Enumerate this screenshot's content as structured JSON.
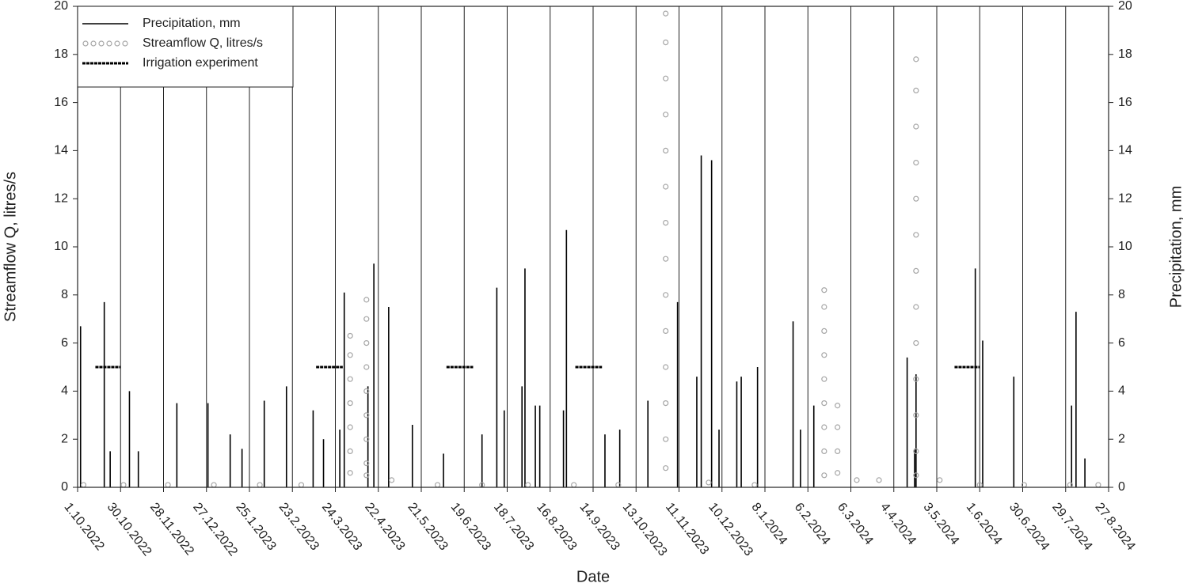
{
  "chart_data": {
    "type": "mixed",
    "xlabel": "Date",
    "ylabel": "Streamflow Q, litres/s",
    "y2label": "Precipitation, mm",
    "xlim": [
      "1.10.2022",
      "27.8.2024"
    ],
    "xticks": [
      "1.10.2022",
      "30.10.2022",
      "28.11.2022",
      "27.12.2022",
      "25.1.2023",
      "23.2.2023",
      "24.3.2023",
      "22.4.2023",
      "21.5.2023",
      "19.6.2023",
      "18.7.2023",
      "16.8.2023",
      "14.9.2023",
      "13.10.2023",
      "11.11.2023",
      "10.12.2023",
      "8.1.2024",
      "6.2.2024",
      "6.3.2024",
      "4.4.2024",
      "3.5.2024",
      "1.6.2024",
      "30.6.2024",
      "29.7.2024",
      "27.8.2024"
    ],
    "ylim": [
      0,
      20
    ],
    "yticks": [
      0,
      2,
      4,
      6,
      8,
      10,
      12,
      14,
      16,
      18,
      20
    ],
    "y2lim": [
      0,
      20
    ],
    "y2ticks": [
      0,
      2,
      4,
      6,
      8,
      10,
      12,
      14,
      16,
      18,
      20
    ],
    "grid": true,
    "legend": "upper left",
    "series": [
      {
        "name": "Precipitation, mm",
        "type": "bar",
        "axis": "y2",
        "color": "#000000",
        "x": [
          "3.10.2022",
          "19.10.2022",
          "23.10.2022",
          "5.11.2022",
          "11.11.2022",
          "7.12.2022",
          "28.12.2022",
          "12.1.2023",
          "20.1.2023",
          "4.2.2023",
          "19.2.2023",
          "9.3.2023",
          "16.3.2023",
          "27.3.2023",
          "30.3.2023",
          "15.4.2023",
          "19.4.2023",
          "29.4.2023",
          "15.5.2023",
          "5.6.2023",
          "1.7.2023",
          "11.7.2023",
          "16.7.2023",
          "28.7.2023",
          "30.7.2023",
          "6.8.2023",
          "9.8.2023",
          "25.8.2023",
          "27.8.2023",
          "22.9.2023",
          "2.10.2023",
          "21.10.2023",
          "10.11.2023",
          "23.11.2023",
          "26.11.2023",
          "3.12.2023",
          "8.12.2023",
          "20.12.2023",
          "23.12.2023",
          "3.1.2024",
          "27.1.2024",
          "1.2.2024",
          "10.2.2024",
          "13.4.2024",
          "18.4.2024",
          "19.4.2024",
          "29.5.2024",
          "3.6.2024",
          "24.6.2024",
          "2.8.2024",
          "5.8.2024",
          "11.8.2024"
        ],
        "values": [
          6.7,
          7.7,
          1.5,
          4.0,
          1.5,
          3.5,
          3.5,
          2.2,
          1.6,
          3.6,
          4.2,
          3.2,
          2.0,
          2.4,
          8.1,
          4.2,
          9.3,
          7.5,
          2.6,
          1.4,
          2.2,
          8.3,
          3.2,
          4.2,
          9.1,
          3.4,
          3.4,
          3.2,
          10.7,
          2.2,
          2.4,
          3.6,
          7.7,
          4.6,
          13.8,
          13.6,
          2.4,
          4.4,
          4.6,
          5.0,
          6.9,
          2.4,
          3.4,
          5.4,
          1.6,
          4.7,
          9.1,
          6.1,
          4.6,
          3.4,
          7.3,
          1.2
        ]
      },
      {
        "name": "Streamflow Q, litres/s",
        "type": "scatter",
        "axis": "y",
        "color": "#a6a6a6",
        "x": [
          "5.10.2022",
          "1.11.2022",
          "1.12.2022",
          "1.1.2023",
          "1.2.2023",
          "1.3.2023",
          "3.4.2023",
          "3.4.2023",
          "3.4.2023",
          "3.4.2023",
          "3.4.2023",
          "3.4.2023",
          "3.4.2023",
          "14.4.2023",
          "14.4.2023",
          "14.4.2023",
          "14.4.2023",
          "14.4.2023",
          "14.4.2023",
          "14.4.2023",
          "14.4.2023",
          "14.4.2023",
          "1.5.2023",
          "1.6.2023",
          "1.7.2023",
          "1.8.2023",
          "1.9.2023",
          "1.10.2023",
          "2.11.2023",
          "2.11.2023",
          "2.11.2023",
          "2.11.2023",
          "2.11.2023",
          "2.11.2023",
          "2.11.2023",
          "2.11.2023",
          "2.11.2023",
          "2.11.2023",
          "2.11.2023",
          "2.11.2023",
          "2.11.2023",
          "2.11.2023",
          "1.12.2023",
          "1.1.2024",
          "17.2.2024",
          "17.2.2024",
          "17.2.2024",
          "17.2.2024",
          "17.2.2024",
          "17.2.2024",
          "17.2.2024",
          "17.2.2024",
          "17.2.2024",
          "26.2.2024",
          "26.2.2024",
          "26.2.2024",
          "26.2.2024",
          "10.3.2024",
          "25.3.2024",
          "19.4.2024",
          "19.4.2024",
          "19.4.2024",
          "19.4.2024",
          "19.4.2024",
          "19.4.2024",
          "19.4.2024",
          "19.4.2024",
          "19.4.2024",
          "19.4.2024",
          "19.4.2024",
          "19.4.2024",
          "19.4.2024",
          "5.5.2024",
          "1.6.2024",
          "1.7.2024",
          "1.8.2024",
          "20.8.2024"
        ],
        "values": [
          0.1,
          0.1,
          0.1,
          0.1,
          0.1,
          0.1,
          6.3,
          5.5,
          4.5,
          3.5,
          2.5,
          1.5,
          0.6,
          7.8,
          7,
          6,
          5,
          4,
          3,
          2,
          1,
          0.5,
          0.3,
          0.1,
          0.1,
          0.1,
          0.1,
          0.1,
          19.7,
          18.5,
          17,
          15.5,
          14,
          12.5,
          11,
          9.5,
          8,
          6.5,
          5,
          3.5,
          2,
          0.8,
          0.2,
          0.1,
          8.2,
          7.5,
          6.5,
          5.5,
          4.5,
          3.5,
          2.5,
          1.5,
          0.5,
          3.4,
          2.5,
          1.5,
          0.6,
          0.3,
          0.3,
          17.8,
          16.5,
          15,
          13.5,
          12,
          10.5,
          9,
          7.5,
          6,
          4.5,
          3,
          1.5,
          0.5,
          0.3,
          0.1,
          0.1,
          0.1,
          0.1
        ]
      },
      {
        "name": "Irrigation experiment",
        "type": "range",
        "axis": "y",
        "color": "#000000",
        "starts": [
          "13.10.2022",
          "11.3.2023",
          "7.6.2023",
          "2.9.2023",
          "15.5.2024"
        ],
        "ends": [
          "30.10.2022",
          "29.3.2023",
          "25.6.2023",
          "20.9.2023",
          "1.6.2024"
        ],
        "values": [
          5,
          5,
          5,
          5,
          5
        ]
      }
    ]
  }
}
